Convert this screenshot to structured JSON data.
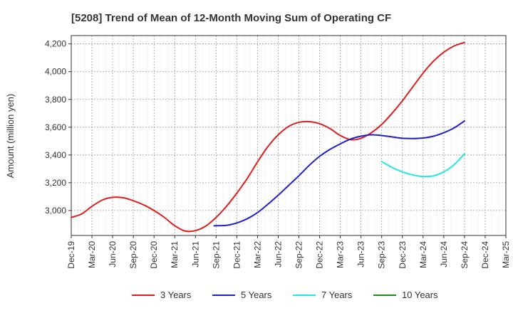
{
  "chart_data": {
    "type": "line",
    "title": "[5208]  Trend of Mean of 12-Month Moving Sum of Operating CF",
    "xlabel": "",
    "ylabel": "Amount (million yen)",
    "ylim": [
      2820,
      4260
    ],
    "y_ticks": [
      3000,
      3200,
      3400,
      3600,
      3800,
      4000,
      4200
    ],
    "y_tick_labels": [
      "3,000",
      "3,200",
      "3,400",
      "3,600",
      "3,800",
      "4,000",
      "4,200"
    ],
    "x_tick_labels": [
      "Dec-19",
      "Mar-20",
      "Jun-20",
      "Sep-20",
      "Dec-20",
      "Mar-21",
      "Jun-21",
      "Sep-21",
      "Dec-21",
      "Mar-22",
      "Jun-22",
      "Sep-22",
      "Dec-22",
      "Mar-23",
      "Jun-23",
      "Sep-23",
      "Dec-23",
      "Mar-24",
      "Jun-24",
      "Sep-24",
      "Dec-24",
      "Mar-25"
    ],
    "grid": true,
    "legend_position": "bottom",
    "series": [
      {
        "name": "3 Years",
        "color": "#dd1f1f",
        "x": [
          0,
          0.5,
          1,
          1.5,
          2,
          2.5,
          3,
          3.5,
          4,
          4.5,
          5,
          5.5,
          6,
          6.5,
          7,
          7.5,
          8,
          8.5,
          9,
          9.5,
          10,
          10.5,
          11,
          11.5,
          12,
          12.5,
          13,
          13.5,
          14,
          14.5,
          15,
          15.5,
          16,
          16.5,
          17,
          17.5,
          18,
          18.5,
          19
        ],
        "values": [
          2950,
          2975,
          3030,
          3075,
          3095,
          3092,
          3070,
          3040,
          3000,
          2950,
          2890,
          2852,
          2855,
          2888,
          2950,
          3030,
          3125,
          3230,
          3350,
          3460,
          3545,
          3605,
          3635,
          3640,
          3625,
          3590,
          3540,
          3510,
          3520,
          3560,
          3620,
          3700,
          3790,
          3890,
          3990,
          4075,
          4140,
          4185,
          4210
        ]
      },
      {
        "name": "5 Years",
        "color": "#1f1fcc",
        "x": [
          6.9,
          7.5,
          8,
          8.5,
          9,
          9.5,
          10,
          10.5,
          11,
          11.5,
          12,
          12.5,
          13,
          13.5,
          14,
          14.5,
          15,
          15.5,
          16,
          16.5,
          17,
          17.5,
          18,
          18.5,
          19
        ],
        "values": [
          2890,
          2893,
          2910,
          2940,
          2985,
          3045,
          3110,
          3180,
          3250,
          3325,
          3390,
          3440,
          3480,
          3515,
          3535,
          3545,
          3540,
          3530,
          3520,
          3518,
          3522,
          3535,
          3560,
          3595,
          3645
        ]
      },
      {
        "name": "7 Years",
        "color": "#22e5e5",
        "x": [
          15,
          15.5,
          16,
          16.5,
          17,
          17.5,
          18,
          18.5,
          19
        ],
        "values": [
          3352,
          3310,
          3278,
          3256,
          3245,
          3250,
          3278,
          3330,
          3408
        ]
      },
      {
        "name": "10 Years",
        "color": "#1f8a1f",
        "x": [],
        "values": []
      }
    ]
  }
}
